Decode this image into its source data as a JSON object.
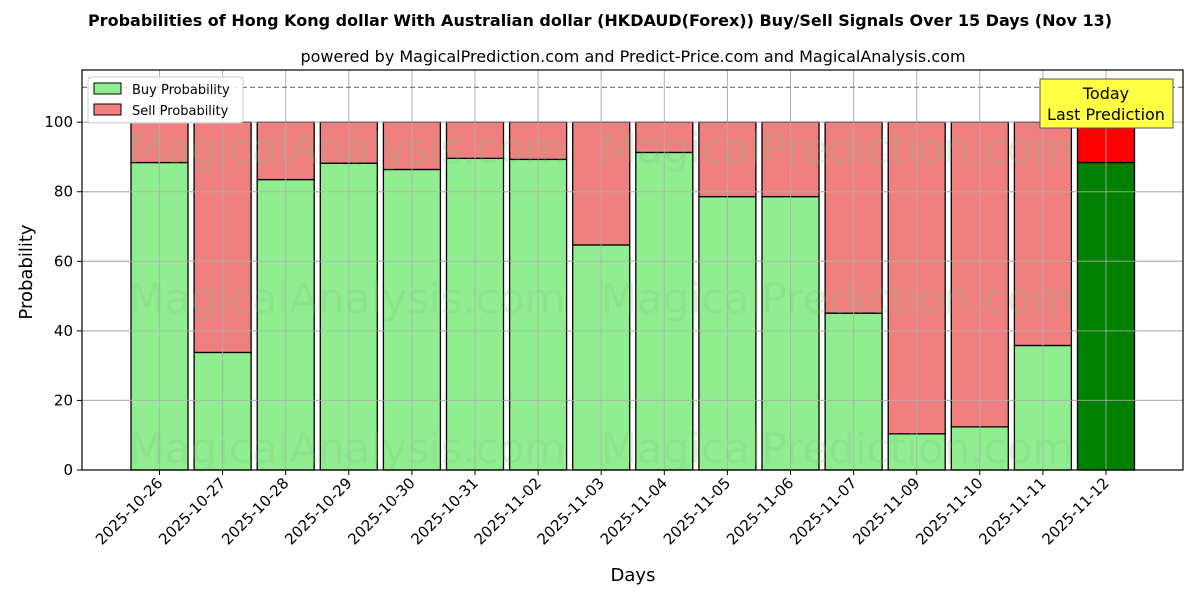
{
  "chart_data": {
    "type": "bar",
    "stacked": true,
    "title": "Probabilities of Hong Kong dollar With Australian dollar (HKDAUD(Forex)) Buy/Sell Signals Over 15 Days (Nov 13)",
    "subtitle": "powered by MagicalPrediction.com and Predict-Price.com and MagicalAnalysis.com",
    "xlabel": "Days",
    "ylabel": "Probability",
    "ylim": [
      0,
      115
    ],
    "yticks": [
      0,
      20,
      40,
      60,
      80,
      100
    ],
    "grid": true,
    "reference_line": {
      "y": 110,
      "style": "dashed",
      "color": "#808080"
    },
    "legend": {
      "position": "upper left",
      "entries": [
        "Buy Probability",
        "Sell Probability"
      ]
    },
    "categories": [
      "2025-10-26",
      "2025-10-27",
      "2025-10-28",
      "2025-10-29",
      "2025-10-30",
      "2025-10-31",
      "2025-11-02",
      "2025-11-03",
      "2025-11-04",
      "2025-11-05",
      "2025-11-06",
      "2025-11-07",
      "2025-11-09",
      "2025-11-10",
      "2025-11-11",
      "2025-11-12"
    ],
    "series": [
      {
        "name": "Buy Probability",
        "color": "#90ee90",
        "highlight_color": "#008000",
        "values": [
          88.4,
          33.8,
          83.5,
          88.2,
          86.4,
          89.6,
          89.3,
          64.7,
          91.3,
          78.6,
          78.6,
          45.1,
          10.4,
          12.4,
          35.8,
          88.4
        ]
      },
      {
        "name": "Sell Probability",
        "color": "#f08080",
        "highlight_color": "#ff0000",
        "values": [
          11.6,
          66.2,
          16.5,
          11.8,
          13.6,
          10.4,
          10.7,
          35.3,
          8.7,
          21.4,
          21.4,
          54.9,
          89.6,
          87.6,
          64.2,
          11.6
        ]
      }
    ],
    "highlight_index": 15,
    "annotation": {
      "line1": "Today",
      "line2": "Last Prediction",
      "background": "#ffff44"
    },
    "watermarks": [
      "MagicalAnalysis.com",
      "MagicalPrediction.com"
    ]
  }
}
